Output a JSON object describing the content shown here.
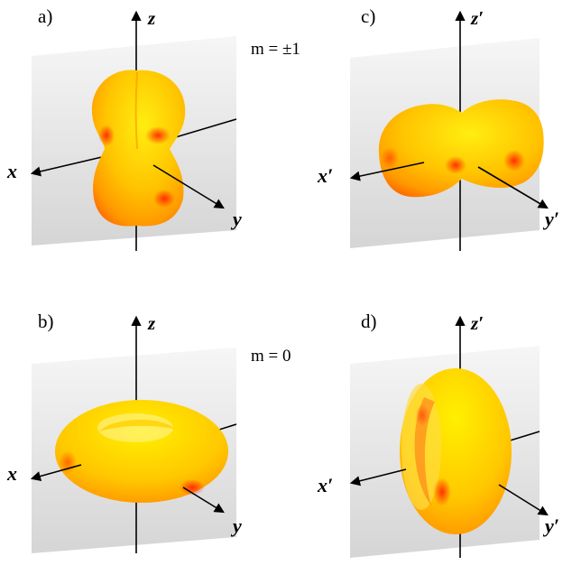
{
  "panels": [
    {
      "label": "a)",
      "axes": {
        "x": "x",
        "y": "y",
        "z": "z"
      },
      "note": "m = ±1"
    },
    {
      "label": "b)",
      "axes": {
        "x": "x",
        "y": "y",
        "z": "z"
      },
      "note": "m = 0"
    },
    {
      "label": "c)",
      "axes": {
        "x": "x′",
        "y": "y′",
        "z": "z′"
      }
    },
    {
      "label": "d)",
      "axes": {
        "x": "x′",
        "y": "y′",
        "z": "z′"
      }
    }
  ],
  "colors": {
    "lobe_light": "#ffe600",
    "lobe_mid": "#ffb000",
    "lobe_dark": "#ff3a00",
    "plane_top": "#f4f4f4",
    "plane_bottom": "#d8d8d8"
  }
}
